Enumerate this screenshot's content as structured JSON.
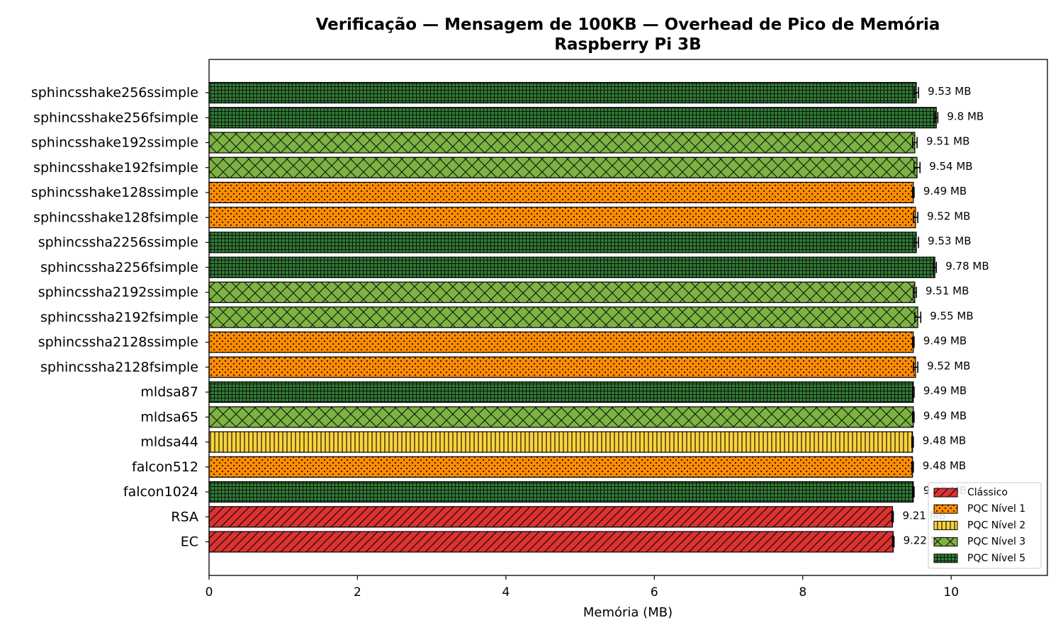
{
  "chart_data": {
    "type": "bar",
    "orientation": "horizontal",
    "title": "Verificação — Mensagem de 100KB — Overhead de Pico de Memória",
    "subtitle": "Raspberry Pi 3B",
    "xlabel": "Memória (MB)",
    "ylabel": "",
    "xlim": [
      0,
      11.3
    ],
    "xticks": [
      "0",
      "2",
      "4",
      "6",
      "8",
      "10"
    ],
    "grid": false,
    "legend_position": "lower-right",
    "categories": [
      "sphincsshake256ssimple",
      "sphincsshake256fsimple",
      "sphincsshake192ssimple",
      "sphincsshake192fsimple",
      "sphincsshake128ssimple",
      "sphincsshake128fsimple",
      "sphincssha2256ssimple",
      "sphincssha2256fsimple",
      "sphincssha2192ssimple",
      "sphincssha2192fsimple",
      "sphincssha2128ssimple",
      "sphincssha2128fsimple",
      "mldsa87",
      "mldsa65",
      "mldsa44",
      "falcon512",
      "falcon1024",
      "RSA",
      "EC"
    ],
    "values": [
      9.53,
      9.8,
      9.51,
      9.54,
      9.49,
      9.52,
      9.53,
      9.78,
      9.51,
      9.55,
      9.49,
      9.52,
      9.49,
      9.49,
      9.48,
      9.48,
      9.49,
      9.21,
      9.22
    ],
    "errors": [
      0.03,
      0.02,
      0.03,
      0.04,
      0.01,
      0.03,
      0.03,
      0.02,
      0.02,
      0.04,
      0.01,
      0.03,
      0.01,
      0.01,
      0.01,
      0.01,
      0.01,
      0.01,
      0.01
    ],
    "value_labels": [
      "9.53 MB",
      "9.8 MB",
      "9.51 MB",
      "9.54 MB",
      "9.49 MB",
      "9.52 MB",
      "9.53 MB",
      "9.78 MB",
      "9.51 MB",
      "9.55 MB",
      "9.49 MB",
      "9.52 MB",
      "9.49 MB",
      "9.49 MB",
      "9.48 MB",
      "9.48 MB",
      "9.49 MB",
      "9.21 MB",
      "9.22 MB"
    ],
    "groups": [
      "n5",
      "n5",
      "n3",
      "n3",
      "n1",
      "n1",
      "n5",
      "n5",
      "n3",
      "n3",
      "n1",
      "n1",
      "n5",
      "n3",
      "n2",
      "n1",
      "n5",
      "classic",
      "classic"
    ],
    "legend": [
      {
        "key": "classic",
        "label": "Clássico",
        "color": "#e03131",
        "pattern": "diagonal"
      },
      {
        "key": "n1",
        "label": "PQC Nível 1",
        "color": "#ff8c00",
        "pattern": "dots"
      },
      {
        "key": "n2",
        "label": "PQC Nível 2",
        "color": "#ffd43b",
        "pattern": "vertical"
      },
      {
        "key": "n3",
        "label": "PQC Nível 3",
        "color": "#7cb342",
        "pattern": "crosshatch"
      },
      {
        "key": "n5",
        "label": "PQC Nível 5",
        "color": "#2e7d32",
        "pattern": "grid"
      }
    ]
  }
}
